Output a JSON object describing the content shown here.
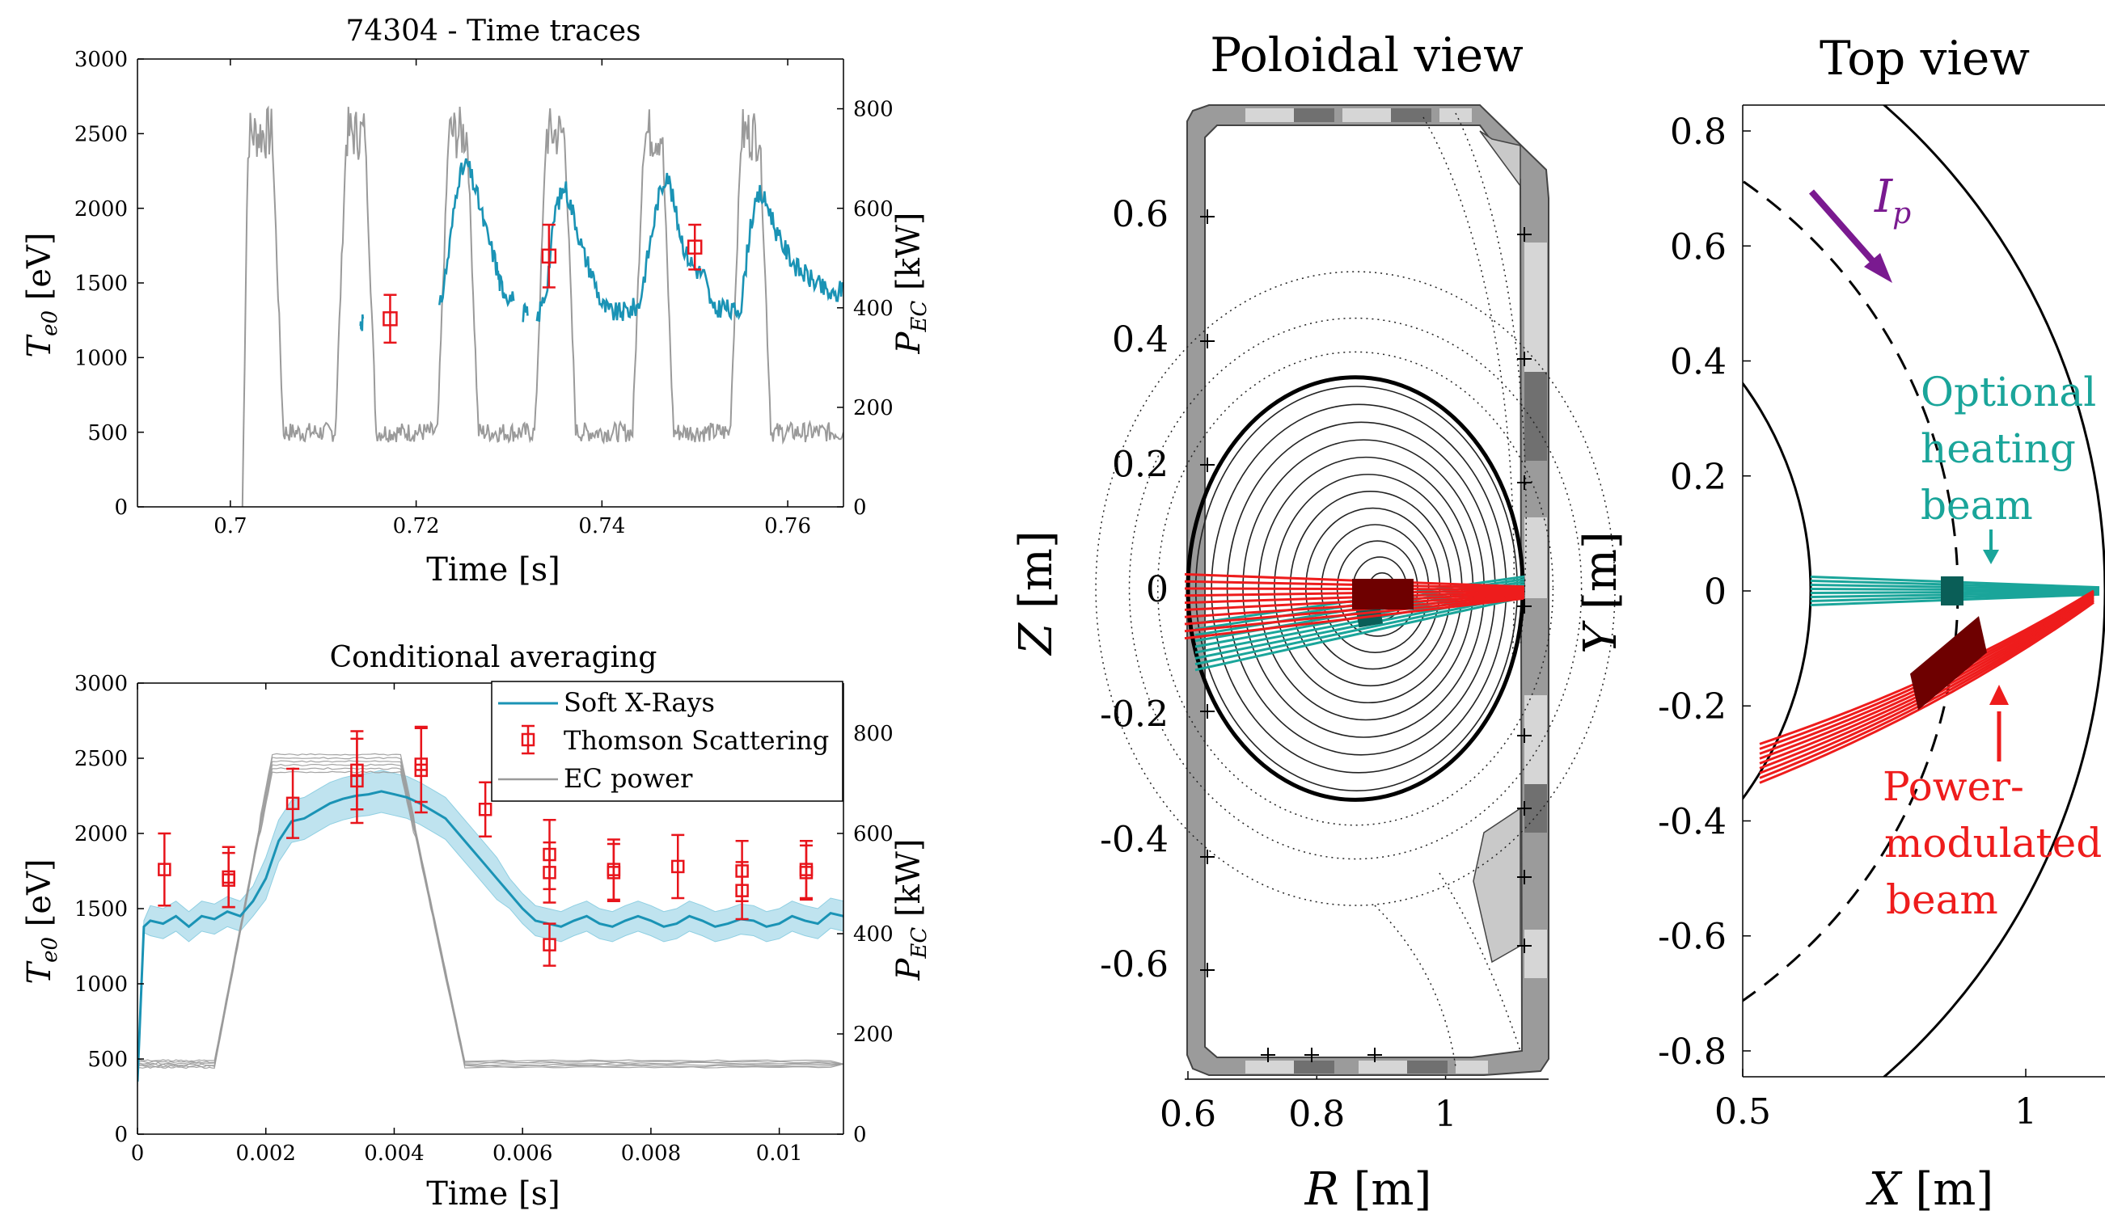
{
  "colors": {
    "sxr": "#1a93b5",
    "sxr_band": "#bfe3ef",
    "ts": "#e8141b",
    "ec": "#9a9a9a",
    "teal": "#1aa59a",
    "red": "#ee1c1c",
    "darkred": "#6e0000",
    "purple": "#7a1a90",
    "wall": "#9b9b9b",
    "wall_light": "#d6d6d6",
    "wall_dark": "#707070"
  },
  "chart_data": [
    {
      "id": "time_traces",
      "type": "line",
      "title": "74304 - Time traces",
      "xlabel": "Time [s]",
      "ylabel": "T_e0 [eV]",
      "y2label": "P_EC [kW]",
      "xlim": [
        0.69,
        0.766
      ],
      "ylim": [
        0,
        3000
      ],
      "y2lim": [
        0,
        900
      ],
      "xticks": [
        "0.7",
        "0.72",
        "0.74",
        "0.76"
      ],
      "xtick_values": [
        0.7,
        0.72,
        0.74,
        0.76
      ],
      "yticks": [
        "0",
        "500",
        "1000",
        "1500",
        "2000",
        "2500",
        "3000"
      ],
      "ytick_values": [
        0,
        500,
        1000,
        1500,
        2000,
        2500,
        3000
      ],
      "y2ticks": [
        "0",
        "200",
        "400",
        "600",
        "800"
      ],
      "y2tick_values": [
        0,
        200,
        400,
        600,
        800
      ],
      "ec_pulses": [
        [
          0.702,
          0.7045
        ],
        [
          0.7125,
          0.7145
        ],
        [
          0.7235,
          0.7255
        ],
        [
          0.734,
          0.736
        ],
        [
          0.7445,
          0.7465
        ],
        [
          0.755,
          0.757
        ]
      ],
      "ec_high_kW": 750,
      "ec_low_kW": 150,
      "sxr_segments": [
        {
          "x": [
            0.714,
            0.7143
          ],
          "y": [
            1220,
            1260
          ]
        },
        {
          "x": [
            0.7225,
            0.7235,
            0.7245,
            0.7255,
            0.7265,
            0.7275,
            0.7285,
            0.729,
            0.7295,
            0.7305
          ],
          "y": [
            1300,
            1700,
            2200,
            2300,
            2100,
            1850,
            1650,
            1500,
            1450,
            1380
          ]
        },
        {
          "x": [
            0.7315,
            0.732
          ],
          "y": [
            1300,
            1280
          ]
        },
        {
          "x": [
            0.733,
            0.734,
            0.735,
            0.736,
            0.737,
            0.738,
            0.739,
            0.74,
            0.741,
            0.742,
            0.743,
            0.744,
            0.745,
            0.746,
            0.747,
            0.748,
            0.749
          ],
          "y": [
            1250,
            1450,
            2000,
            2150,
            1950,
            1700,
            1550,
            1350,
            1300,
            1300,
            1320,
            1350,
            1700,
            2050,
            2250,
            1950,
            1700
          ]
        },
        {
          "x": [
            0.749,
            0.75,
            0.751,
            0.752,
            0.753,
            0.754,
            0.755,
            0.756,
            0.757,
            0.758,
            0.759,
            0.76,
            0.761,
            0.762,
            0.763,
            0.764,
            0.765,
            0.766
          ],
          "y": [
            1700,
            1600,
            1550,
            1300,
            1350,
            1300,
            1350,
            1900,
            2100,
            2000,
            1800,
            1700,
            1600,
            1550,
            1500,
            1450,
            1400,
            1480
          ]
        }
      ],
      "ts_points": [
        {
          "x": 0.7172,
          "y": 1260,
          "err": 160
        },
        {
          "x": 0.7343,
          "y": 1680,
          "err": 210
        },
        {
          "x": 0.75,
          "y": 1740,
          "err": 150
        }
      ]
    },
    {
      "id": "conditional_averaging",
      "type": "line",
      "title": "Conditional averaging",
      "xlabel": "Time [s]",
      "ylabel": "T_e0 [eV]",
      "y2label": "P_EC [kW]",
      "xlim": [
        0,
        0.011
      ],
      "ylim": [
        0,
        3000
      ],
      "y2lim": [
        0,
        900
      ],
      "xticks": [
        "0",
        "0.002",
        "0.004",
        "0.006",
        "0.008",
        "0.01"
      ],
      "xtick_values": [
        0,
        0.002,
        0.004,
        0.006,
        0.008,
        0.01
      ],
      "yticks": [
        "0",
        "500",
        "1000",
        "1500",
        "2000",
        "2500",
        "3000"
      ],
      "ytick_values": [
        0,
        500,
        1000,
        1500,
        2000,
        2500,
        3000
      ],
      "y2ticks": [
        "0",
        "200",
        "400",
        "600",
        "800"
      ],
      "y2tick_values": [
        0,
        200,
        400,
        600,
        800
      ],
      "legend": [
        "Soft X-Rays",
        "Thomson Scattering",
        "EC power"
      ],
      "legend_position": "top-right",
      "ec_power": {
        "x": [
          0,
          0.0012,
          0.0021,
          0.0041,
          0.0051,
          0.011
        ],
        "y": [
          140,
          140,
          740,
          740,
          140,
          140
        ]
      },
      "sxr_mean": {
        "x": [
          0,
          0.0001,
          0.0002,
          0.0004,
          0.0006,
          0.0008,
          0.001,
          0.0012,
          0.0014,
          0.0016,
          0.0018,
          0.002,
          0.0022,
          0.0024,
          0.0026,
          0.0028,
          0.003,
          0.0032,
          0.0034,
          0.0036,
          0.0038,
          0.004,
          0.0042,
          0.0044,
          0.0046,
          0.0048,
          0.005,
          0.0052,
          0.0054,
          0.0056,
          0.0058,
          0.006,
          0.0062,
          0.0064,
          0.0066,
          0.0068,
          0.007,
          0.0072,
          0.0074,
          0.0076,
          0.0078,
          0.008,
          0.0082,
          0.0084,
          0.0086,
          0.0088,
          0.009,
          0.0092,
          0.0094,
          0.0096,
          0.0098,
          0.01,
          0.0102,
          0.0104,
          0.0106,
          0.0108,
          0.011
        ],
        "y": [
          350,
          1380,
          1420,
          1400,
          1450,
          1380,
          1450,
          1430,
          1480,
          1450,
          1550,
          1700,
          1950,
          2080,
          2100,
          2150,
          2200,
          2230,
          2250,
          2260,
          2280,
          2260,
          2240,
          2200,
          2150,
          2100,
          2000,
          1900,
          1800,
          1700,
          1600,
          1500,
          1420,
          1400,
          1380,
          1420,
          1450,
          1400,
          1380,
          1420,
          1450,
          1420,
          1380,
          1400,
          1450,
          1420,
          1380,
          1400,
          1430,
          1420,
          1380,
          1400,
          1450,
          1420,
          1400,
          1470,
          1450
        ]
      },
      "sxr_band_halfwidth": 100,
      "ts_points": [
        {
          "x": 0.00042,
          "y": 1760,
          "err": 240
        },
        {
          "x": 0.00142,
          "y": 1710,
          "err": 200
        },
        {
          "x": 0.00142,
          "y": 1690,
          "err": 180
        },
        {
          "x": 0.00242,
          "y": 2200,
          "err": 230
        },
        {
          "x": 0.00342,
          "y": 2350,
          "err": 280
        },
        {
          "x": 0.00342,
          "y": 2420,
          "err": 260
        },
        {
          "x": 0.00442,
          "y": 2420,
          "err": 280
        },
        {
          "x": 0.00442,
          "y": 2460,
          "err": 250
        },
        {
          "x": 0.00542,
          "y": 2160,
          "err": 180
        },
        {
          "x": 0.00642,
          "y": 1860,
          "err": 230
        },
        {
          "x": 0.00642,
          "y": 1740,
          "err": 200
        },
        {
          "x": 0.00642,
          "y": 1260,
          "err": 140
        },
        {
          "x": 0.00742,
          "y": 1760,
          "err": 200
        },
        {
          "x": 0.00742,
          "y": 1740,
          "err": 190
        },
        {
          "x": 0.00842,
          "y": 1780,
          "err": 210
        },
        {
          "x": 0.00942,
          "y": 1750,
          "err": 200
        },
        {
          "x": 0.00942,
          "y": 1620,
          "err": 190
        },
        {
          "x": 0.01042,
          "y": 1760,
          "err": 190
        },
        {
          "x": 0.01042,
          "y": 1740,
          "err": 180
        }
      ]
    },
    {
      "id": "poloidal_view",
      "type": "line",
      "title": "Poloidal view",
      "xlabel": "R [m]",
      "ylabel": "Z [m]",
      "xlim": [
        0.595,
        1.16
      ],
      "ylim": [
        -0.785,
        0.78
      ],
      "xticks": [
        "0.6",
        "0.8",
        "1"
      ],
      "xtick_values": [
        0.6,
        0.8,
        1.0
      ],
      "yticks": [
        "-0.6",
        "-0.4",
        "-0.2",
        "0",
        "0.2",
        "0.4",
        "0.6"
      ],
      "ytick_values": [
        -0.6,
        -0.4,
        -0.2,
        0,
        0.2,
        0.4,
        0.6
      ],
      "magnetic_axis": {
        "R": 0.905,
        "Z": 0.0
      },
      "lcfs": {
        "R0": 0.86,
        "a": 0.26,
        "kappa": 1.3
      },
      "beams": [
        "Optional heating beam",
        "Power-modulated beam"
      ]
    },
    {
      "id": "top_view",
      "type": "line",
      "title": "Top view",
      "xlabel": "X [m]",
      "ylabel": "Y [m]",
      "xlim": [
        0.5,
        1.13
      ],
      "ylim": [
        -0.845,
        0.845
      ],
      "xticks": [
        "0.5",
        "1"
      ],
      "xtick_values": [
        0.5,
        1.0
      ],
      "yticks": [
        "-0.8",
        "-0.6",
        "-0.4",
        "-0.2",
        "0",
        "0.2",
        "0.4",
        "0.6",
        "0.8"
      ],
      "ytick_values": [
        -0.8,
        -0.6,
        -0.4,
        -0.2,
        0,
        0.2,
        0.4,
        0.6,
        0.8
      ],
      "inner_wall_radius": 0.62,
      "outer_wall_radius": 1.14,
      "magnetic_axis_radius": 0.88,
      "annotations": {
        "current": "I",
        "current_sub": "p",
        "optional_beam": [
          "Optional",
          "heating",
          "beam"
        ],
        "modulated_beam": [
          "Power-",
          "modulated",
          "beam"
        ]
      }
    }
  ]
}
